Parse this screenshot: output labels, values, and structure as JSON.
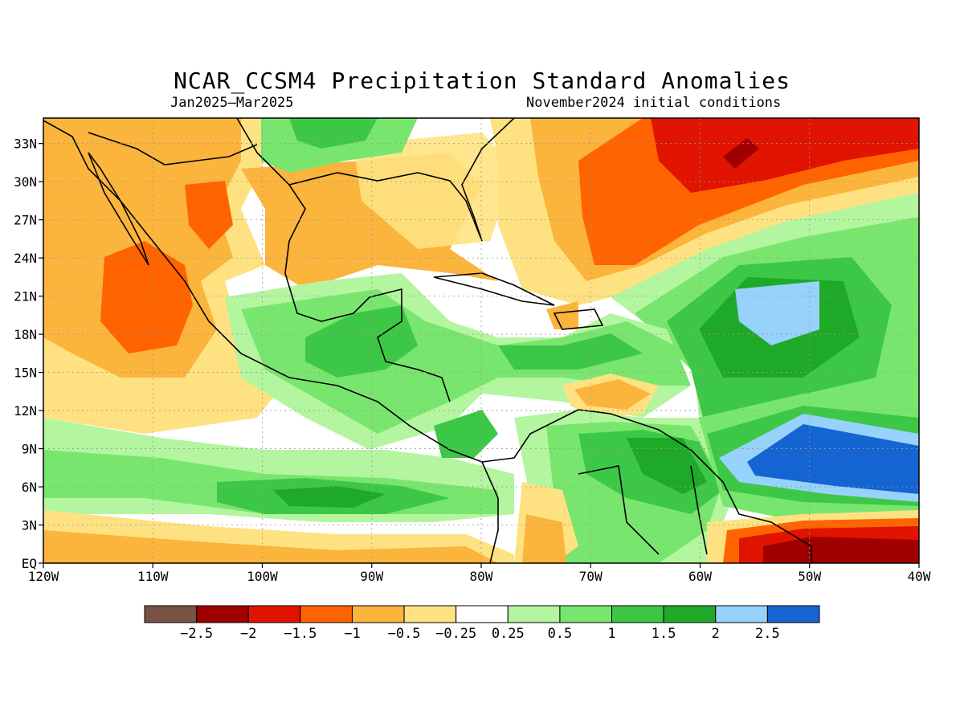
{
  "title": "NCAR_CCSM4 Precipitation Standard Anomalies",
  "period": "Jan2025–Mar2025",
  "init": "November2024 initial conditions",
  "lat_labels": [
    "33N",
    "30N",
    "27N",
    "24N",
    "21N",
    "18N",
    "15N",
    "12N",
    "9N",
    "6N",
    "3N",
    "EQ"
  ],
  "lat_values": [
    33,
    30,
    27,
    24,
    21,
    18,
    15,
    12,
    9,
    6,
    3,
    0
  ],
  "lon_labels": [
    "120W",
    "110W",
    "100W",
    "90W",
    "80W",
    "70W",
    "60W",
    "50W",
    "40W"
  ],
  "lon_values": [
    -120,
    -110,
    -100,
    -90,
    -80,
    -70,
    -60,
    -50,
    -40
  ],
  "extent": {
    "lon": [
      -120,
      -40
    ],
    "lat": [
      0,
      35
    ]
  },
  "colorbar": {
    "colors": [
      "#7a5246",
      "#a00000",
      "#e01400",
      "#ff6400",
      "#fbb43c",
      "#fee282",
      "#ffffff",
      "#b4f5a0",
      "#78e66e",
      "#3cc846",
      "#1eaa28",
      "#96d2fa",
      "#1464d2"
    ],
    "labels": [
      "−2.5",
      "−2",
      "−1.5",
      "−1",
      "−0.5",
      "−0.25",
      "0.25",
      "0.5",
      "1",
      "1.5",
      "2",
      "2.5"
    ]
  },
  "colors": {
    "land_outline": "#000000",
    "grid": "#999999"
  }
}
